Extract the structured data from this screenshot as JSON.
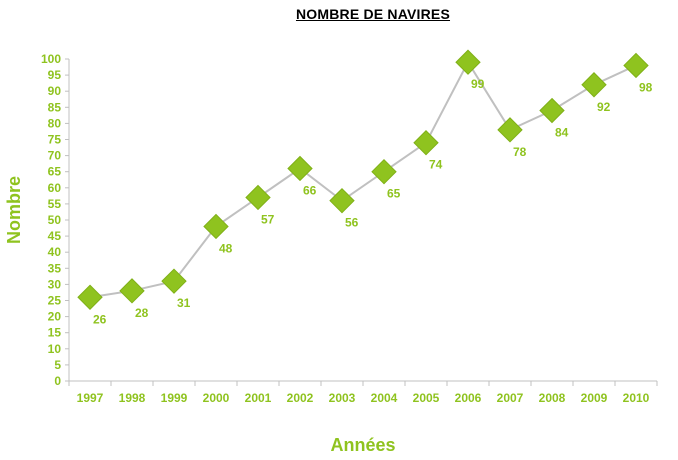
{
  "chart_data": {
    "type": "line",
    "title": "NOMBRE DE NAVIRES",
    "xlabel": "Années",
    "ylabel": "Nombre",
    "categories": [
      "1997",
      "1998",
      "1999",
      "2000",
      "2001",
      "2002",
      "2003",
      "2004",
      "2005",
      "2006",
      "2007",
      "2008",
      "2009",
      "2010"
    ],
    "series": [
      {
        "values": [
          26,
          28,
          31,
          48,
          57,
          66,
          56,
          65,
          74,
          99,
          78,
          84,
          92,
          98
        ]
      }
    ],
    "y_ticks": [
      "0",
      "5",
      "10",
      "15",
      "20",
      "25",
      "30",
      "35",
      "40",
      "45",
      "50",
      "55",
      "60",
      "65",
      "70",
      "75",
      "80",
      "85",
      "90",
      "95",
      "100"
    ],
    "ylim": [
      0,
      100
    ],
    "grid": false,
    "legend": "none",
    "marker": "diamond",
    "colors": {
      "marker": "#8fc31f",
      "line": "#c0c0c0",
      "text": "#8fc31f",
      "axis": "#c0c0c0",
      "title": "#000000"
    }
  }
}
